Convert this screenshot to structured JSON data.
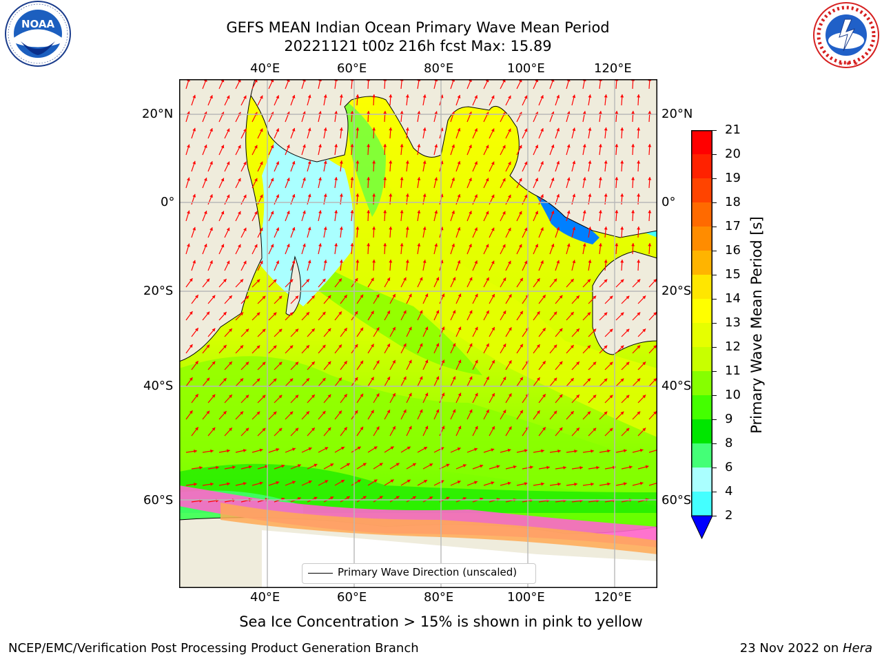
{
  "title": {
    "line1": "GEFS MEAN Indian Ocean Primary Wave Mean Period",
    "line2": "20221121 t00z 216h fcst   Max: 15.89"
  },
  "logos": {
    "left": {
      "name": "noaa-logo",
      "text": "NOAA"
    },
    "right": {
      "name": "nws-logo",
      "text": "NATIONAL WEATHER SERVICE"
    }
  },
  "map": {
    "lon_labels": [
      "40°E",
      "60°E",
      "80°E",
      "100°E",
      "120°E"
    ],
    "lat_labels": [
      "20°N",
      "0°",
      "20°S",
      "40°S",
      "60°S"
    ],
    "legend_label": "Primary Wave Direction (unscaled)",
    "arrow_color": "#ff0000",
    "land_color": "#efecdc",
    "ice_note": "Sea Ice Concentration > 15% is shown in pink to yellow"
  },
  "colorbar": {
    "label": "Primary Wave Mean Period [s]",
    "ticks": [
      "21",
      "20",
      "19",
      "18",
      "17",
      "16",
      "15",
      "14",
      "13",
      "12",
      "11",
      "10",
      "9",
      "8",
      "6",
      "4",
      "2"
    ],
    "colors": [
      "#ff0000",
      "#ff2200",
      "#ff4400",
      "#ff6a00",
      "#ff8c00",
      "#ffb400",
      "#ffe600",
      "#ffff00",
      "#e6ff00",
      "#c8ff00",
      "#86ff00",
      "#44ff00",
      "#00e600",
      "#44ff77",
      "#aaffff",
      "#44ffff",
      "#00ffff",
      "#00e6ff",
      "#0080ff"
    ],
    "under_color": "#0000ff"
  },
  "footer": {
    "left": "NCEP/EMC/Verification Post Processing Product Generation Branch",
    "right_prefix": "23 Nov 2022 on ",
    "right_italic": "Hera"
  }
}
